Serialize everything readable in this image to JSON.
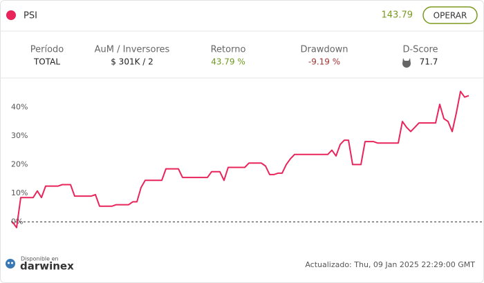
{
  "header": {
    "name": "PSI",
    "price": "143.79",
    "button": "OPERAR"
  },
  "stats": [
    {
      "label": "Período",
      "value": "TOTAL"
    },
    {
      "label": "AuM / Inversores",
      "value": "$ 301K / 2"
    },
    {
      "label": "Retorno",
      "value": "43.79 %"
    },
    {
      "label": "Drawdown",
      "value": "-9.19 %"
    },
    {
      "label": "D-Score",
      "value": "71.7"
    }
  ],
  "chart_data": {
    "type": "line",
    "series": [
      {
        "color": "#e8245a",
        "values": [
          0,
          -2,
          8.5,
          8.5,
          8.5,
          8.5,
          10.8,
          8.5,
          12.5,
          12.5,
          12.5,
          12.5,
          13,
          13,
          13,
          9,
          9,
          9,
          9,
          9,
          9.5,
          5.5,
          5.5,
          5.5,
          5.5,
          6,
          6,
          6,
          6,
          7,
          7,
          12,
          14.5,
          14.5,
          14.5,
          14.5,
          14.5,
          18.5,
          18.5,
          18.5,
          18.5,
          15.5,
          15.5,
          15.5,
          15.5,
          15.5,
          15.5,
          15.5,
          17.5,
          17.5,
          17.5,
          14.5,
          19,
          19,
          19,
          19,
          19,
          20.5,
          20.5,
          20.5,
          20.5,
          19.5,
          16.5,
          16.5,
          17,
          17,
          20,
          22,
          23.5,
          23.5,
          23.5,
          23.5,
          23.5,
          23.5,
          23.5,
          23.5,
          23.5,
          25,
          23,
          27,
          28.5,
          28.5,
          20,
          20,
          20,
          28,
          28,
          28,
          27.5,
          27.5,
          27.5,
          27.5,
          27.5,
          27.5,
          35,
          33,
          31.5,
          33,
          34.5,
          34.5,
          34.5,
          34.5,
          34.5,
          41,
          36,
          35,
          31.5,
          38,
          45.5,
          43.5,
          44
        ]
      }
    ],
    "ylim": [
      -3,
      48
    ],
    "yticks": [
      {
        "value": 0,
        "label": "0%"
      },
      {
        "value": 10,
        "label": "10%"
      },
      {
        "value": 20,
        "label": "20%"
      },
      {
        "value": 30,
        "label": "30%"
      },
      {
        "value": 40,
        "label": "40%"
      }
    ],
    "zero_line": true
  },
  "footer": {
    "brand_small": "Disponible en",
    "brand": "darwinex",
    "updated": "Actualizado: Thu, 09 Jan 2025 22:29:00 GMT"
  }
}
